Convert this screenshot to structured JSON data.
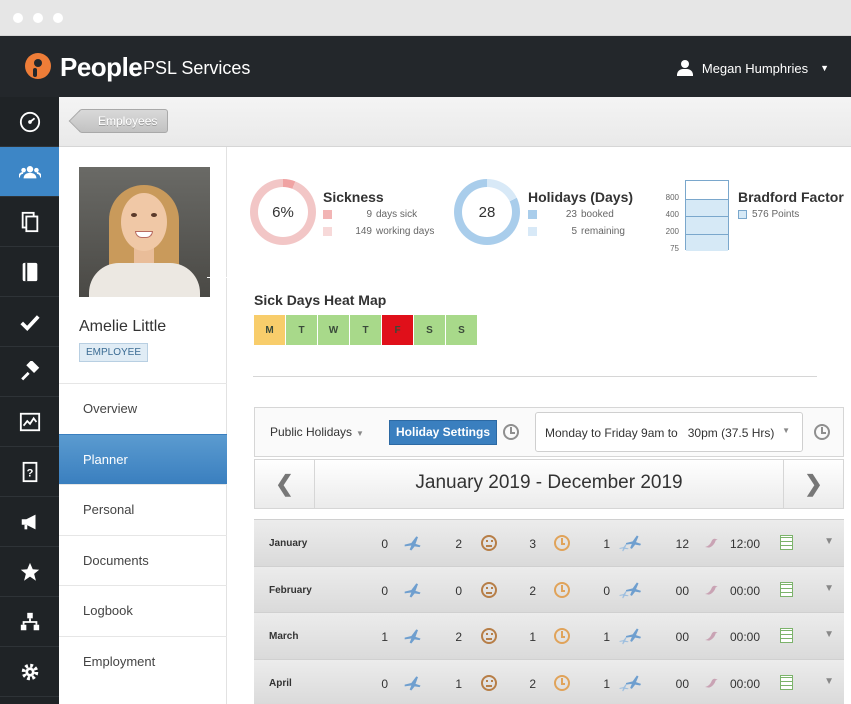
{
  "header": {
    "brand": "People",
    "company": "- PSL Services",
    "user_name": "Megan Humphries"
  },
  "rail": {
    "items": [
      {
        "icon": "dashboard-icon"
      },
      {
        "icon": "people-icon",
        "active": true
      },
      {
        "icon": "documents-icon"
      },
      {
        "icon": "notebook-icon"
      },
      {
        "icon": "check-icon"
      },
      {
        "icon": "hammer-icon"
      },
      {
        "icon": "chart-icon"
      },
      {
        "icon": "help-icon"
      },
      {
        "icon": "megaphone-icon"
      },
      {
        "icon": "star-icon"
      },
      {
        "icon": "org-chart-icon"
      },
      {
        "icon": "settings-icon"
      }
    ]
  },
  "breadcrumb": {
    "label": "Employees"
  },
  "profile": {
    "name": "Amelie Little",
    "role": "EMPLOYEE",
    "menu": [
      "Overview",
      "Planner",
      "Personal",
      "Documents",
      "Logbook",
      "Employment"
    ],
    "active_menu": "Planner"
  },
  "stats": {
    "sickness": {
      "title": "Sickness",
      "percent_label": "6%",
      "percent": 6,
      "days_sick_value": "9",
      "days_sick_label": "days sick",
      "working_days_value": "149",
      "working_days_label": "working days",
      "color": "#f2c6c6",
      "accent": "#f0a3a3"
    },
    "holidays": {
      "title": "Holidays (Days)",
      "total_label": "28",
      "booked_value": "23",
      "booked_label": "booked",
      "remaining_value": "5",
      "remaining_label": "remaining",
      "booked_fraction": 0.82,
      "color": "#a9cdeb",
      "light": "#d8e9f7"
    },
    "bradford": {
      "title": "Bradford Factor",
      "points_label": "576 Points",
      "axis": [
        "800",
        "400",
        "200",
        "75"
      ]
    }
  },
  "heatmap": {
    "title": "Sick Days Heat Map",
    "days": [
      {
        "label": "M",
        "color": "#f8cd6b"
      },
      {
        "label": "T",
        "color": "#a8d98a"
      },
      {
        "label": "W",
        "color": "#a8d98a"
      },
      {
        "label": "T",
        "color": "#a8d98a"
      },
      {
        "label": "F",
        "color": "#e0101a"
      },
      {
        "label": "S",
        "color": "#a8d98a"
      },
      {
        "label": "S",
        "color": "#a8d98a"
      }
    ]
  },
  "controls": {
    "public_holidays": "Public Holidays",
    "holiday_settings": "Holiday Settings",
    "working_hours": "Monday to Friday 9am to   30pm (37.5 Hrs)"
  },
  "year_range": "January 2019 - December 2019",
  "months": [
    {
      "name": "January",
      "holiday": "0",
      "sick": "2",
      "late": "3",
      "travel": "1",
      "hours": "12",
      "time": "12:00"
    },
    {
      "name": "February",
      "holiday": "0",
      "sick": "0",
      "late": "2",
      "travel": "0",
      "hours": "00",
      "time": "00:00"
    },
    {
      "name": "March",
      "holiday": "1",
      "sick": "2",
      "late": "1",
      "travel": "1",
      "hours": "00",
      "time": "00:00"
    },
    {
      "name": "April",
      "holiday": "0",
      "sick": "1",
      "late": "2",
      "travel": "1",
      "hours": "00",
      "time": "00:00"
    }
  ]
}
